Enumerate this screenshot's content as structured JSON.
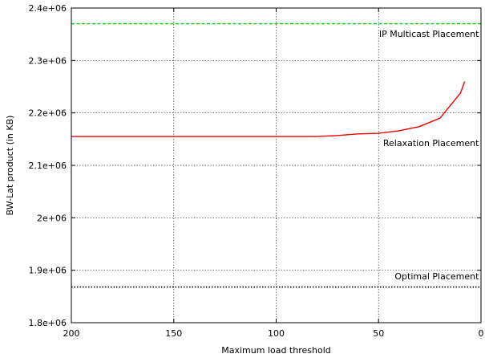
{
  "chart_data": {
    "type": "line",
    "xlabel": "Maximum load threshold",
    "ylabel": "BW-Lat product (in KB)",
    "xlim": [
      200,
      0
    ],
    "ylim": [
      1800000,
      2400000
    ],
    "x_reversed": true,
    "grid": true,
    "x_ticks": [
      200,
      150,
      100,
      50,
      0
    ],
    "x_tick_labels": [
      "200",
      "150",
      "100",
      "50",
      "0"
    ],
    "y_ticks": [
      1800000,
      1900000,
      2000000,
      2100000,
      2200000,
      2300000,
      2400000
    ],
    "y_tick_labels": [
      "1.8e+06",
      "1.9e+06",
      "2e+06",
      "2.1e+06",
      "2.2e+06",
      "2.3e+06",
      "2.4e+06"
    ],
    "series": [
      {
        "name": "IP Multicast Placement",
        "color": "#00cc00",
        "style": "dashed",
        "x": [
          200,
          0
        ],
        "y": [
          2370000,
          2370000
        ]
      },
      {
        "name": "Relaxation Placement",
        "color": "#ee0000",
        "style": "solid",
        "x": [
          200,
          150,
          100,
          80,
          70,
          60,
          50,
          40,
          30,
          20,
          10,
          8
        ],
        "y": [
          2155000,
          2155000,
          2155000,
          2155000,
          2157000,
          2160000,
          2161000,
          2166000,
          2174000,
          2190000,
          2238000,
          2260000
        ]
      },
      {
        "name": "Optimal Placement",
        "color": "#000000",
        "style": "dotted",
        "x": [
          200,
          0
        ],
        "y": [
          1868000,
          1868000
        ]
      }
    ],
    "annotations": [
      {
        "text": "IP Multicast Placement",
        "x": 1,
        "y": 2345000,
        "anchor": "end"
      },
      {
        "text": "Relaxation Placement",
        "x": 1,
        "y": 2137000,
        "anchor": "end"
      },
      {
        "text": "Optimal Placement",
        "x": 1,
        "y": 1883000,
        "anchor": "end"
      }
    ]
  }
}
